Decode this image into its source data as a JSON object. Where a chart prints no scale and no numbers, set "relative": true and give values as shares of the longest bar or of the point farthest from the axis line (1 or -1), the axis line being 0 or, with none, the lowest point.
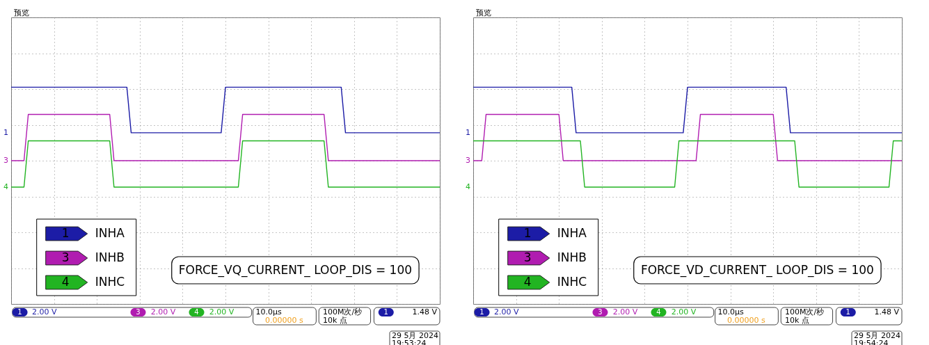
{
  "chart_data": [
    {
      "type": "line",
      "title": "预览",
      "relative": true,
      "grid": true,
      "legend": "bottom left",
      "categories": [
        null,
        null,
        null,
        null,
        null,
        null,
        null,
        null,
        null,
        null,
        null,
        null,
        null,
        null,
        null,
        null,
        null,
        null,
        null,
        null,
        null,
        null,
        null,
        null,
        null,
        null,
        null,
        null,
        null,
        null,
        null,
        null,
        null,
        null,
        null,
        null,
        null,
        null,
        null,
        null,
        null,
        null,
        null,
        null,
        null,
        null,
        null,
        null,
        null,
        null,
        null,
        null,
        null,
        null,
        null,
        null,
        null,
        null,
        null,
        null,
        null,
        null,
        null,
        null,
        null,
        null,
        null,
        null,
        null,
        null,
        null,
        null,
        null,
        null,
        null,
        null,
        null,
        null,
        null,
        null,
        null,
        null,
        null,
        null,
        null,
        null,
        null,
        null,
        null,
        null,
        null,
        null,
        null,
        null,
        null,
        null,
        null,
        null,
        null,
        null,
        null
      ],
      "series": [
        {
          "name": "INHA",
          "color": "#1c1ca6",
          "values": [
            1,
            1,
            1,
            1,
            1,
            1,
            1,
            1,
            1,
            1,
            1,
            1,
            1,
            1,
            1,
            1,
            1,
            1,
            1,
            1,
            1,
            1,
            1,
            1,
            1,
            1,
            1,
            1,
            0.38,
            0.38,
            0.38,
            0.38,
            0.38,
            0.38,
            0.38,
            0.38,
            0.38,
            0.38,
            0.38,
            0.38,
            0.38,
            0.38,
            0.38,
            0.38,
            0.38,
            0.38,
            0.38,
            0.38,
            0.38,
            0.38,
            1,
            1,
            1,
            1,
            1,
            1,
            1,
            1,
            1,
            1,
            1,
            1,
            1,
            1,
            1,
            1,
            1,
            1,
            1,
            1,
            1,
            1,
            1,
            1,
            1,
            1,
            1,
            1,
            0.38,
            0.38,
            0.38,
            0.38,
            0.38,
            0.38,
            0.38,
            0.38,
            0.38,
            0.38,
            0.38,
            0.38,
            0.38,
            0.38,
            0.38,
            0.38,
            0.38,
            0.38,
            0.38,
            0.38,
            0.38,
            0.38,
            0.38
          ]
        },
        {
          "name": "INHB",
          "color": "#b01cb0",
          "values": [
            0,
            0,
            0,
            0,
            0.63,
            0.63,
            0.63,
            0.63,
            0.63,
            0.63,
            0.63,
            0.63,
            0.63,
            0.63,
            0.63,
            0.63,
            0.63,
            0.63,
            0.63,
            0.63,
            0.63,
            0.63,
            0.63,
            0.63,
            0,
            0,
            0,
            0,
            0,
            0,
            0,
            0,
            0,
            0,
            0,
            0,
            0,
            0,
            0,
            0,
            0,
            0,
            0,
            0,
            0,
            0,
            0,
            0,
            0,
            0,
            0,
            0,
            0,
            0,
            0.63,
            0.63,
            0.63,
            0.63,
            0.63,
            0.63,
            0.63,
            0.63,
            0.63,
            0.63,
            0.63,
            0.63,
            0.63,
            0.63,
            0.63,
            0.63,
            0.63,
            0.63,
            0.63,
            0.63,
            0,
            0,
            0,
            0,
            0,
            0,
            0,
            0,
            0,
            0,
            0,
            0,
            0,
            0,
            0,
            0,
            0,
            0,
            0,
            0,
            0,
            0,
            0,
            0,
            0,
            0,
            0
          ]
        },
        {
          "name": "INHC",
          "color": "#22b422",
          "values": [
            -0.36,
            -0.36,
            -0.36,
            -0.36,
            0.27,
            0.27,
            0.27,
            0.27,
            0.27,
            0.27,
            0.27,
            0.27,
            0.27,
            0.27,
            0.27,
            0.27,
            0.27,
            0.27,
            0.27,
            0.27,
            0.27,
            0.27,
            0.27,
            0.27,
            -0.36,
            -0.36,
            -0.36,
            -0.36,
            -0.36,
            -0.36,
            -0.36,
            -0.36,
            -0.36,
            -0.36,
            -0.36,
            -0.36,
            -0.36,
            -0.36,
            -0.36,
            -0.36,
            -0.36,
            -0.36,
            -0.36,
            -0.36,
            -0.36,
            -0.36,
            -0.36,
            -0.36,
            -0.36,
            -0.36,
            -0.36,
            -0.36,
            -0.36,
            -0.36,
            0.27,
            0.27,
            0.27,
            0.27,
            0.27,
            0.27,
            0.27,
            0.27,
            0.27,
            0.27,
            0.27,
            0.27,
            0.27,
            0.27,
            0.27,
            0.27,
            0.27,
            0.27,
            0.27,
            0.27,
            -0.36,
            -0.36,
            -0.36,
            -0.36,
            -0.36,
            -0.36,
            -0.36,
            -0.36,
            -0.36,
            -0.36,
            -0.36,
            -0.36,
            -0.36,
            -0.36,
            -0.36,
            -0.36,
            -0.36,
            -0.36,
            -0.36,
            -0.36,
            -0.36,
            -0.36,
            -0.36,
            -0.36,
            -0.36,
            -0.36,
            -0.36
          ]
        }
      ],
      "annotations": [
        "1",
        "3",
        "4",
        "FORCE_VQ_CURRENT_ LOOP_DIS = 100",
        "2.00 V",
        "2.00 V",
        "2.00 V",
        "10.0µs",
        "0.00000 s",
        "100M次/秒",
        "10k 点",
        "1.48 V",
        "29 5月  2024",
        "19:53:24"
      ]
    },
    {
      "type": "line",
      "title": "预览",
      "relative": true,
      "grid": true,
      "legend": "bottom left",
      "categories": [
        null,
        null,
        null,
        null,
        null,
        null,
        null,
        null,
        null,
        null,
        null,
        null,
        null,
        null,
        null,
        null,
        null,
        null,
        null,
        null,
        null,
        null,
        null,
        null,
        null,
        null,
        null,
        null,
        null,
        null,
        null,
        null,
        null,
        null,
        null,
        null,
        null,
        null,
        null,
        null,
        null,
        null,
        null,
        null,
        null,
        null,
        null,
        null,
        null,
        null,
        null,
        null,
        null,
        null,
        null,
        null,
        null,
        null,
        null,
        null,
        null,
        null,
        null,
        null,
        null,
        null,
        null,
        null,
        null,
        null,
        null,
        null,
        null,
        null,
        null,
        null,
        null,
        null,
        null,
        null,
        null,
        null,
        null,
        null,
        null,
        null,
        null,
        null,
        null,
        null,
        null,
        null,
        null,
        null,
        null,
        null,
        null,
        null,
        null,
        null,
        null
      ],
      "series": [
        {
          "name": "INHA",
          "color": "#1c1ca6",
          "values": [
            1,
            1,
            1,
            1,
            1,
            1,
            1,
            1,
            1,
            1,
            1,
            1,
            1,
            1,
            1,
            1,
            1,
            1,
            1,
            1,
            1,
            1,
            1,
            1,
            0.38,
            0.38,
            0.38,
            0.38,
            0.38,
            0.38,
            0.38,
            0.38,
            0.38,
            0.38,
            0.38,
            0.38,
            0.38,
            0.38,
            0.38,
            0.38,
            0.38,
            0.38,
            0.38,
            0.38,
            0.38,
            0.38,
            0.38,
            0.38,
            0.38,
            0.38,
            1,
            1,
            1,
            1,
            1,
            1,
            1,
            1,
            1,
            1,
            1,
            1,
            1,
            1,
            1,
            1,
            1,
            1,
            1,
            1,
            1,
            1,
            1,
            1,
            0.38,
            0.38,
            0.38,
            0.38,
            0.38,
            0.38,
            0.38,
            0.38,
            0.38,
            0.38,
            0.38,
            0.38,
            0.38,
            0.38,
            0.38,
            0.38,
            0.38,
            0.38,
            0.38,
            0.38,
            0.38,
            0.38,
            0.38,
            0.38,
            0.38,
            0.38,
            0.38
          ]
        },
        {
          "name": "INHB",
          "color": "#b01cb0",
          "values": [
            0,
            0,
            0,
            0.63,
            0.63,
            0.63,
            0.63,
            0.63,
            0.63,
            0.63,
            0.63,
            0.63,
            0.63,
            0.63,
            0.63,
            0.63,
            0.63,
            0.63,
            0.63,
            0.63,
            0.63,
            0,
            0,
            0,
            0,
            0,
            0,
            0,
            0,
            0,
            0,
            0,
            0,
            0,
            0,
            0,
            0,
            0,
            0,
            0,
            0,
            0,
            0,
            0,
            0,
            0,
            0,
            0,
            0,
            0,
            0,
            0,
            0,
            0.63,
            0.63,
            0.63,
            0.63,
            0.63,
            0.63,
            0.63,
            0.63,
            0.63,
            0.63,
            0.63,
            0.63,
            0.63,
            0.63,
            0.63,
            0.63,
            0.63,
            0.63,
            0,
            0,
            0,
            0,
            0,
            0,
            0,
            0,
            0,
            0,
            0,
            0,
            0,
            0,
            0,
            0,
            0,
            0,
            0,
            0,
            0,
            0,
            0,
            0,
            0,
            0,
            0,
            0,
            0,
            0
          ]
        },
        {
          "name": "INHC",
          "color": "#22b422",
          "values": [
            0.27,
            0.27,
            0.27,
            0.27,
            0.27,
            0.27,
            0.27,
            0.27,
            0.27,
            0.27,
            0.27,
            0.27,
            0.27,
            0.27,
            0.27,
            0.27,
            0.27,
            0.27,
            0.27,
            0.27,
            0.27,
            0.27,
            0.27,
            0.27,
            0.27,
            0.27,
            -0.36,
            -0.36,
            -0.36,
            -0.36,
            -0.36,
            -0.36,
            -0.36,
            -0.36,
            -0.36,
            -0.36,
            -0.36,
            -0.36,
            -0.36,
            -0.36,
            -0.36,
            -0.36,
            -0.36,
            -0.36,
            -0.36,
            -0.36,
            -0.36,
            -0.36,
            0.27,
            0.27,
            0.27,
            0.27,
            0.27,
            0.27,
            0.27,
            0.27,
            0.27,
            0.27,
            0.27,
            0.27,
            0.27,
            0.27,
            0.27,
            0.27,
            0.27,
            0.27,
            0.27,
            0.27,
            0.27,
            0.27,
            0.27,
            0.27,
            0.27,
            0.27,
            0.27,
            0.27,
            -0.36,
            -0.36,
            -0.36,
            -0.36,
            -0.36,
            -0.36,
            -0.36,
            -0.36,
            -0.36,
            -0.36,
            -0.36,
            -0.36,
            -0.36,
            -0.36,
            -0.36,
            -0.36,
            -0.36,
            -0.36,
            -0.36,
            -0.36,
            -0.36,
            -0.36,
            0.27,
            0.27,
            0.27
          ]
        }
      ],
      "annotations": [
        "1",
        "3",
        "4",
        "FORCE_VD_CURRENT_ LOOP_DIS = 100",
        "2.00 V",
        "2.00 V",
        "2.00 V",
        "10.0µs",
        "0.00000 s",
        "100M次/秒",
        "10k 点",
        "1.48 V",
        "29 5月  2024",
        "19:54:24"
      ]
    }
  ]
}
